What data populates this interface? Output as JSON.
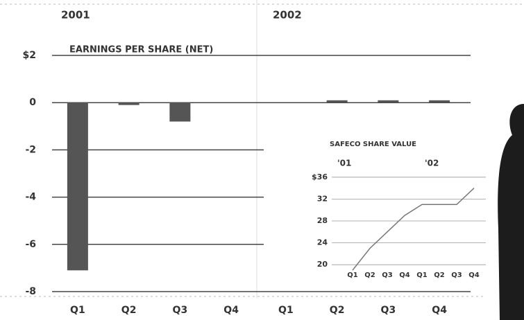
{
  "chart_data": [
    {
      "type": "bar",
      "title": "EARNINGS PER SHARE (NET)",
      "groups": [
        "2001",
        "2002"
      ],
      "categories": [
        "Q1",
        "Q2",
        "Q3",
        "Q4",
        "Q1",
        "Q2",
        "Q3",
        "Q4"
      ],
      "values": [
        -7.1,
        -0.1,
        -0.8,
        0,
        0,
        0.1,
        0.1,
        0.1
      ],
      "color": "#555555",
      "ylim": [
        -8,
        2
      ],
      "yticks": [
        {
          "value": 2,
          "label": "$2"
        },
        0,
        -2,
        -4,
        -6,
        -8
      ],
      "grid": true
    },
    {
      "type": "line",
      "title": "SAFECO SHARE VALUE",
      "groups": [
        "'01",
        "'02"
      ],
      "categories": [
        "Q1",
        "Q2",
        "Q3",
        "Q4",
        "Q1",
        "Q2",
        "Q3",
        "Q4"
      ],
      "values": [
        19,
        23,
        26,
        29,
        31,
        31,
        31,
        34
      ],
      "color": "#777777",
      "ylim": [
        18,
        38
      ],
      "yticks": [
        {
          "value": 36,
          "label": "$36"
        },
        32,
        28,
        24,
        20
      ],
      "grid": true
    }
  ]
}
